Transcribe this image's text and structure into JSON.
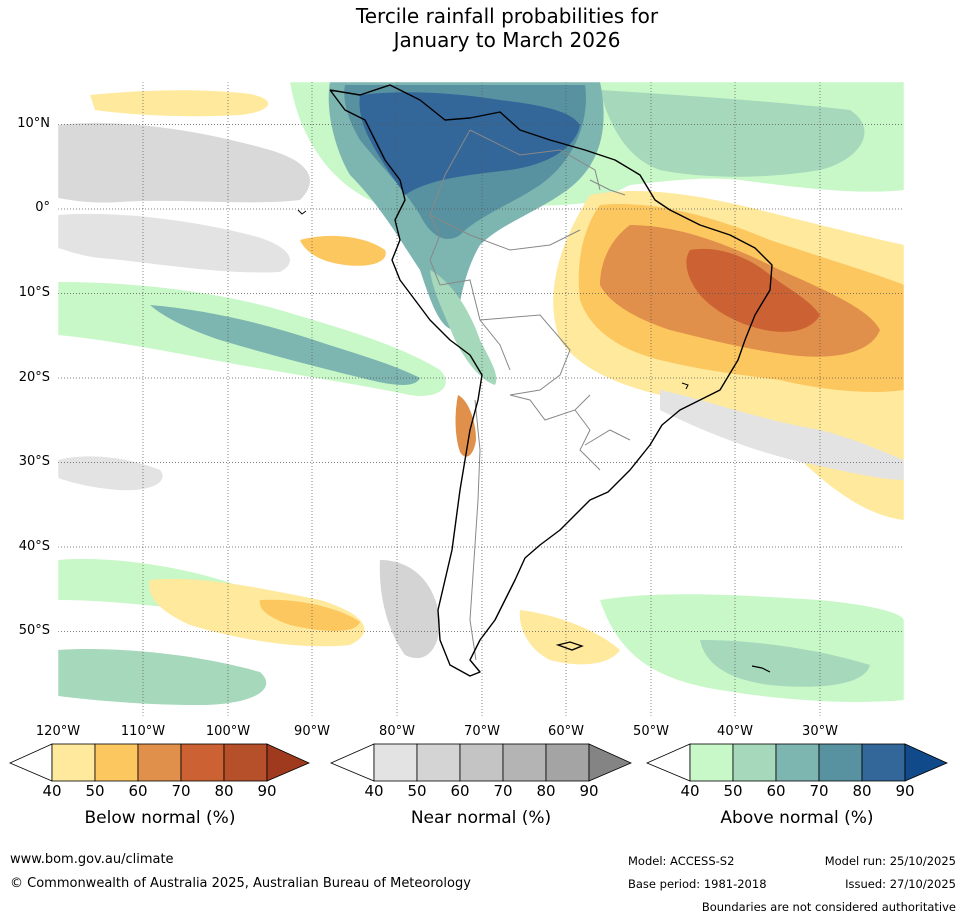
{
  "title": {
    "line1": "Tercile rainfall probabilities for",
    "line2": "January to March 2026"
  },
  "map": {
    "latitude_labels": [
      "10°N",
      "0°",
      "10°S",
      "20°S",
      "30°S",
      "40°S",
      "50°S"
    ],
    "longitude_labels": [
      "120°W",
      "110°W",
      "100°W",
      "90°W",
      "80°W",
      "70°W",
      "60°W",
      "50°W",
      "40°W",
      "30°W"
    ],
    "ocean_white": "#ffffff",
    "coast_color": "#000000",
    "border_color": "#808080"
  },
  "legends": {
    "ticks": [
      "40",
      "50",
      "60",
      "70",
      "80",
      "90"
    ],
    "below": {
      "label": "Below normal (%)",
      "colors": [
        "#ffffff",
        "#fee99d",
        "#fdc760",
        "#e0904a",
        "#cc6233",
        "#b5502a",
        "#a03a1e"
      ]
    },
    "near": {
      "label": "Near normal (%)",
      "colors": [
        "#ffffff",
        "#e3e3e3",
        "#d4d4d4",
        "#c4c4c4",
        "#b4b4b4",
        "#a4a4a4",
        "#848484"
      ]
    },
    "above": {
      "label": "Above normal (%)",
      "colors": [
        "#ffffff",
        "#c8f7c8",
        "#a6d9bb",
        "#7db5b0",
        "#5892a0",
        "#33679a",
        "#104a8a"
      ]
    }
  },
  "footer": {
    "website": "www.bom.gov.au/climate",
    "copyright": "© Commonwealth of Australia 2025, Australian Bureau of Meteorology",
    "model": "Model: ACCESS-S2",
    "base_period": "Base period: 1981-2018",
    "model_run": "Model run: 25/10/2025",
    "issued": "Issued: 27/10/2025",
    "disclaimer": "Boundaries are not considered authoritative"
  }
}
